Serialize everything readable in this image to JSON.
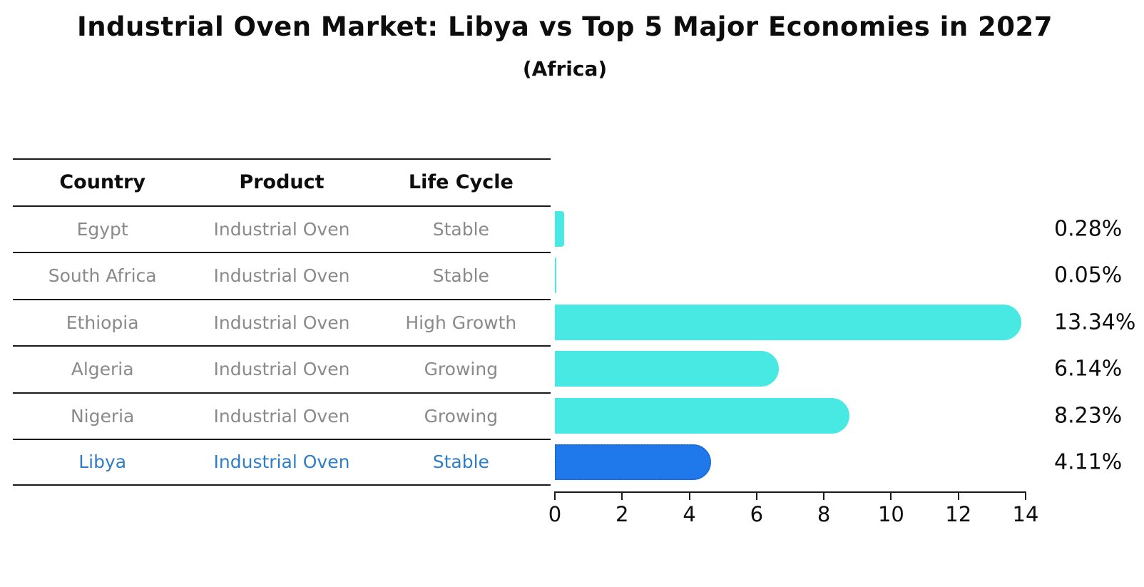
{
  "title": "Industrial Oven Market: Libya vs Top 5 Major Economies in 2027",
  "subtitle": "(Africa)",
  "table": {
    "headers": [
      "Country",
      "Product",
      "Life Cycle"
    ],
    "rows": [
      {
        "country": "Egypt",
        "product": "Industrial Oven",
        "life_cycle": "Stable",
        "share": "0.28%",
        "highlight": false
      },
      {
        "country": "South Africa",
        "product": "Industrial Oven",
        "life_cycle": "Stable",
        "share": "0.05%",
        "highlight": false
      },
      {
        "country": "Ethiopia",
        "product": "Industrial Oven",
        "life_cycle": "High Growth",
        "share": "13.34%",
        "highlight": false
      },
      {
        "country": "Algeria",
        "product": "Industrial Oven",
        "life_cycle": "Growing",
        "share": "6.14%",
        "highlight": false
      },
      {
        "country": "Nigeria",
        "product": "Industrial Oven",
        "life_cycle": "Growing",
        "share": "8.23%",
        "highlight": false
      },
      {
        "country": "Libya",
        "product": "Industrial Oven",
        "life_cycle": "Stable",
        "share": "4.11%",
        "highlight": true
      }
    ]
  },
  "chart_data": {
    "type": "bar",
    "orientation": "horizontal",
    "title": "Industrial Oven Market: Libya vs Top 5 Major Economies in 2027",
    "subtitle": "(Africa)",
    "categories": [
      "Egypt",
      "South Africa",
      "Ethiopia",
      "Algeria",
      "Nigeria",
      "Libya"
    ],
    "values": [
      0.28,
      0.05,
      13.34,
      6.14,
      8.23,
      4.11
    ],
    "value_labels": [
      "0.28%",
      "0.05%",
      "13.34%",
      "6.14%",
      "8.23%",
      "4.11%"
    ],
    "xlabel": "",
    "ylabel": "",
    "xlim": [
      0,
      14
    ],
    "x_ticks": [
      0,
      2,
      4,
      6,
      8,
      10,
      12,
      14
    ],
    "grid": false,
    "legend": "none",
    "highlight_category": "Libya",
    "colors": {
      "bar": "#48E8E3",
      "highlight_bar": "#2079EA",
      "highlight_border": "#1A60D0",
      "row_text": "#8a8a8a",
      "highlight_text": "#2E7EC7",
      "axis": "#1a1a1a",
      "label_text": "#0d0d0d"
    }
  }
}
